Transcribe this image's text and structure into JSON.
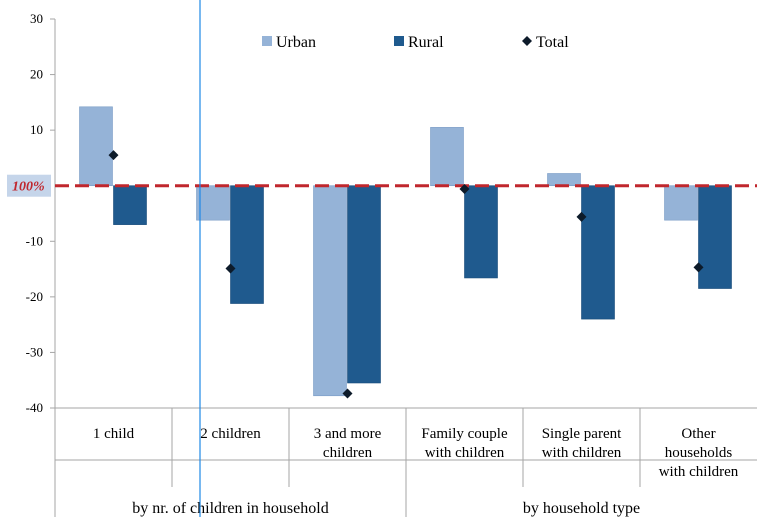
{
  "chart_data": {
    "type": "bar",
    "categories": [
      "1 child",
      "2 children",
      "3 and more\nchildren",
      "Family couple\nwith children",
      "Single parent\nwith children",
      "Other\nhouseholds\nwith children"
    ],
    "groups": [
      {
        "label": "by nr. of children in household",
        "span": [
          0,
          2
        ]
      },
      {
        "label": "by household type",
        "span": [
          3,
          5
        ]
      }
    ],
    "series": [
      {
        "name": "Urban",
        "type": "bar",
        "color": "#95B3D7",
        "values": [
          14.2,
          -6.2,
          -37.8,
          10.5,
          2.2,
          -6.2
        ]
      },
      {
        "name": "Rural",
        "type": "bar",
        "color": "#1F5A8E",
        "values": [
          -7.0,
          -21.2,
          -35.5,
          -16.6,
          -24.0,
          -18.5
        ]
      },
      {
        "name": "Total",
        "type": "marker",
        "color": "#0D1B2A",
        "values": [
          5.5,
          -14.9,
          -37.4,
          -0.6,
          -5.6,
          -14.7
        ]
      }
    ],
    "ylim": [
      -40,
      30
    ],
    "yticks": [
      30,
      20,
      10,
      -10,
      -20,
      -30,
      -40
    ],
    "reference_line": {
      "value": 0,
      "label": "100%",
      "color": "#C0272D"
    },
    "legend": {
      "position": "top"
    },
    "colors": {
      "urban": "#95B3D7",
      "rural": "#1F5A8E",
      "total": "#0D1B2A",
      "reference": "#C0272D",
      "label_bg": "#C5D5EA",
      "axis": "#A6A6A6",
      "cursor": "#1E88E5"
    }
  }
}
